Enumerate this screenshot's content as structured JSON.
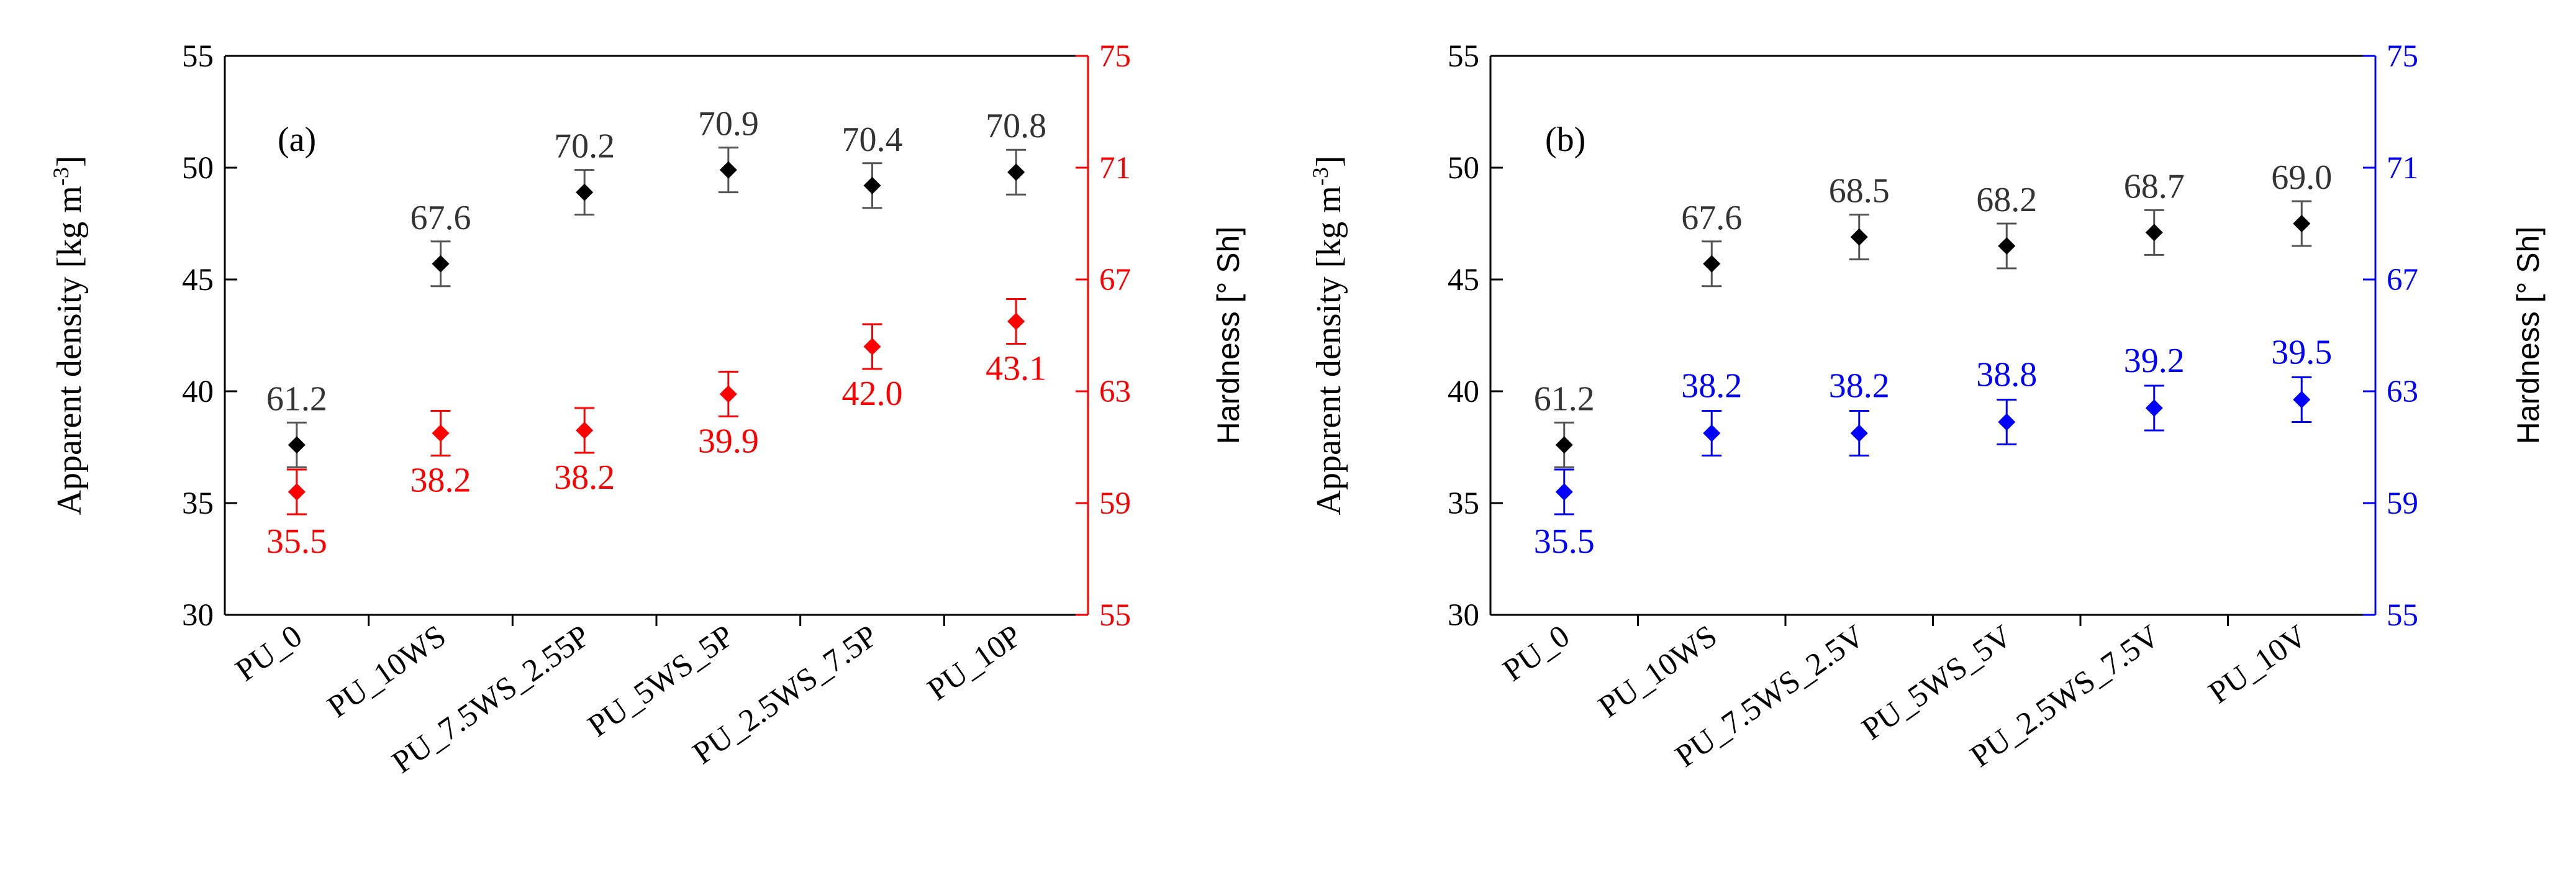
{
  "chart_data": [
    {
      "type": "scatter",
      "panel_label": "(a)",
      "categories": [
        "PU_0",
        "PU_10WS",
        "PU_7.5WS_2.55P",
        "PU_5WS_5P",
        "PU_2.5WS_7.5P",
        "PU_10P"
      ],
      "ylabel_left": "Apparent density [kg m",
      "ylabel_left_sup": "-3",
      "ylabel_left_end": "]",
      "ylabel_right": "Hardness [° Sh]",
      "ylim_left": [
        30,
        55
      ],
      "ylim_right": [
        55,
        75
      ],
      "yticks_left": [
        "30",
        "35",
        "40",
        "45",
        "50",
        "55"
      ],
      "yticks_right": [
        "55",
        "59",
        "63",
        "67",
        "71",
        "75"
      ],
      "right_axis_color": "#ff0000",
      "series": [
        {
          "name": "Apparent density",
          "axis": "left",
          "color": "#000000",
          "values": [
            37.6,
            45.7,
            48.9,
            49.9,
            49.2,
            49.8
          ],
          "errors": [
            1.0,
            1.0,
            1.0,
            1.0,
            1.0,
            1.0
          ],
          "labels": [
            "61.2",
            "67.6",
            "70.2",
            "70.9",
            "70.4",
            "70.8"
          ]
        },
        {
          "name": "Hardness",
          "axis": "right",
          "color": "#ff0000",
          "values": [
            59.4,
            61.5,
            61.6,
            62.9,
            64.6,
            65.5
          ],
          "errors": [
            0.8,
            0.8,
            0.8,
            0.8,
            0.8,
            0.8
          ],
          "labels": [
            "35.5",
            "38.2",
            "38.2",
            "39.9",
            "42.0",
            "43.1"
          ]
        }
      ]
    },
    {
      "type": "scatter",
      "panel_label": "(b)",
      "categories": [
        "PU_0",
        "PU_10WS",
        "PU_7.5WS_2.5V",
        "PU_5WS_5V",
        "PU_2.5WS_7.5V",
        "PU_10V"
      ],
      "ylabel_left": "Apparent density [kg m",
      "ylabel_left_sup": "-3",
      "ylabel_left_end": "]",
      "ylabel_right": "Hardness [° Sh]",
      "ylim_left": [
        30,
        55
      ],
      "ylim_right": [
        55,
        75
      ],
      "yticks_left": [
        "30",
        "35",
        "40",
        "45",
        "50",
        "55"
      ],
      "yticks_right": [
        "55",
        "59",
        "63",
        "67",
        "71",
        "75"
      ],
      "right_axis_color": "#0000ff",
      "series": [
        {
          "name": "Apparent density",
          "axis": "left",
          "color": "#000000",
          "values": [
            37.6,
            45.7,
            46.9,
            46.5,
            47.1,
            47.5
          ],
          "errors": [
            1.0,
            1.0,
            1.0,
            1.0,
            1.0,
            1.0
          ],
          "labels": [
            "61.2",
            "67.6",
            "68.5",
            "68.2",
            "68.7",
            "69.0"
          ]
        },
        {
          "name": "Hardness",
          "axis": "right",
          "color": "#0000ff",
          "values": [
            59.4,
            61.5,
            61.5,
            61.9,
            62.4,
            62.7
          ],
          "errors": [
            0.8,
            0.8,
            0.8,
            0.8,
            0.8,
            0.8
          ],
          "labels": [
            "35.5",
            "38.2",
            "38.2",
            "38.8",
            "39.2",
            "39.5"
          ]
        }
      ]
    }
  ]
}
